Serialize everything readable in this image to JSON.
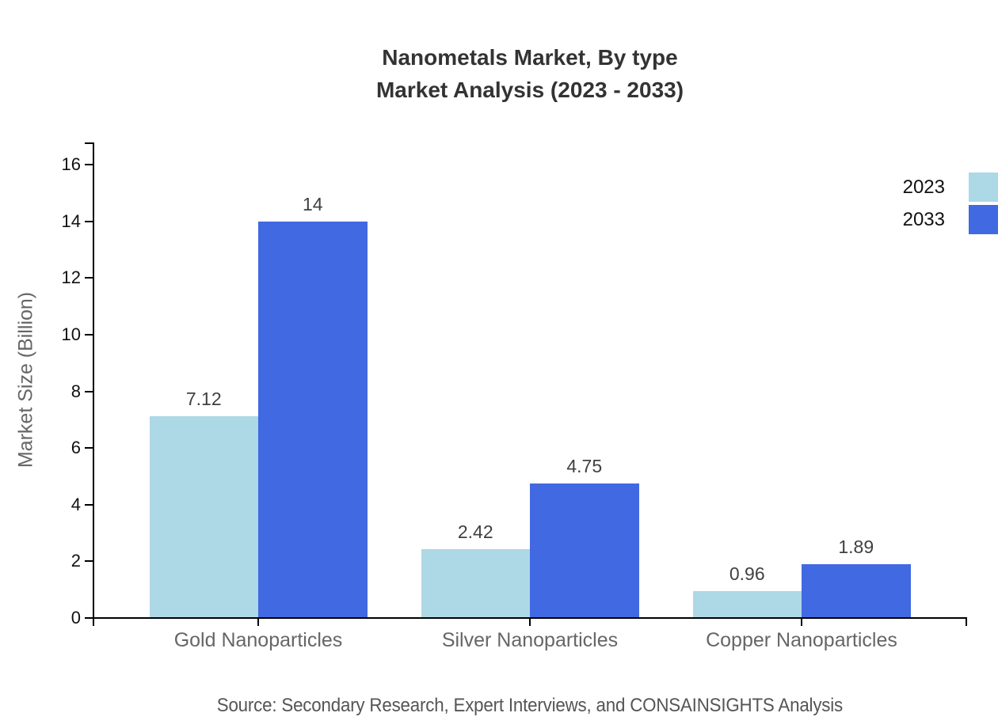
{
  "chart_data": {
    "type": "bar",
    "title": "Nanometals Market, By type",
    "subtitle": "Market Analysis (2023 - 2033)",
    "categories": [
      "Gold Nanoparticles",
      "Silver Nanoparticles",
      "Copper Nanoparticles"
    ],
    "series": [
      {
        "name": "2023",
        "color": "#ADD8E6",
        "values": [
          7.12,
          2.42,
          0.96
        ]
      },
      {
        "name": "2033",
        "color": "#4169E1",
        "values": [
          14,
          4.75,
          1.89
        ]
      }
    ],
    "xlabel": "",
    "ylabel": "Market Size (Billion)",
    "ylim": [
      0,
      16
    ],
    "ytick_step": 2,
    "grid": false,
    "legend_position": "top-right",
    "value_labels_shown": true
  },
  "source": "Source: Secondary Research, Expert Interviews, and CONSAINSIGHTS Analysis",
  "colors": {
    "axis": "#000000",
    "title_text": "#333333",
    "axis_text": "#666666",
    "tick_text": "#111111",
    "value_text": "#404040",
    "source_text": "#555555",
    "background": "#ffffff"
  }
}
